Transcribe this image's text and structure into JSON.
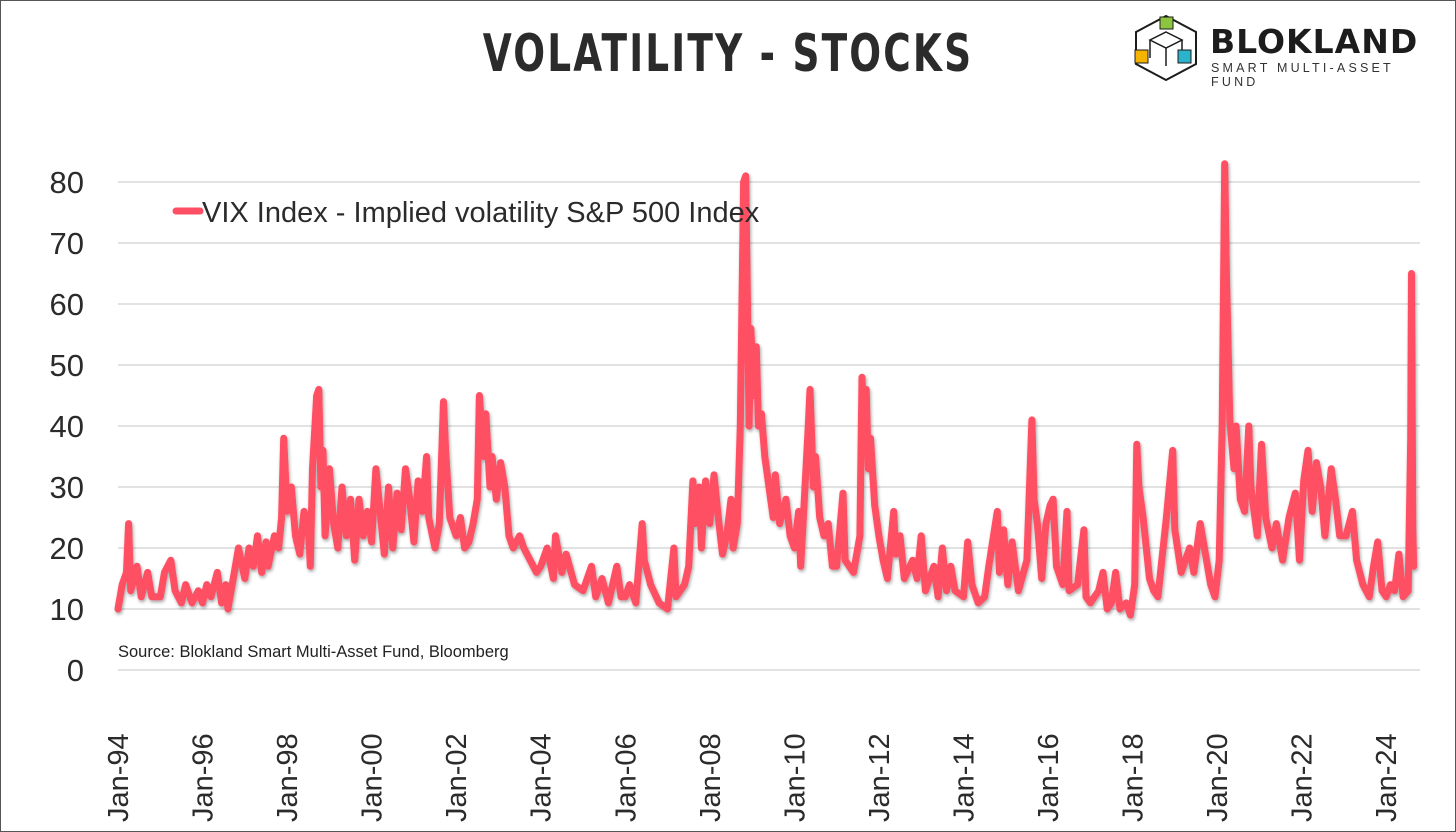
{
  "header": {
    "title": "VOLATILITY - STOCKS"
  },
  "logo": {
    "brand": "BLOKLAND",
    "tagline": "SMART MULTI-ASSET FUND",
    "colors": [
      "#8cc63f",
      "#f4b400",
      "#2bb3cc"
    ]
  },
  "chart_data": {
    "type": "line",
    "title": "VOLATILITY - STOCKS",
    "xlabel": "",
    "ylabel": "",
    "ylim": [
      0,
      80
    ],
    "yticks": [
      0,
      10,
      20,
      30,
      40,
      50,
      60,
      70,
      80
    ],
    "xlim": [
      1994,
      2024.8
    ],
    "xticks": [
      1994,
      1996,
      1998,
      2000,
      2002,
      2004,
      2006,
      2008,
      2010,
      2012,
      2014,
      2016,
      2018,
      2020,
      2022,
      2024
    ],
    "xtick_labels": [
      "Jan-94",
      "Jan-96",
      "Jan-98",
      "Jan-00",
      "Jan-02",
      "Jan-04",
      "Jan-06",
      "Jan-08",
      "Jan-10",
      "Jan-12",
      "Jan-14",
      "Jan-16",
      "Jan-18",
      "Jan-20",
      "Jan-22",
      "Jan-24"
    ],
    "grid": true,
    "legend_position": "top-left",
    "source": "Source: Blokland Smart Multi-Asset Fund, Bloomberg",
    "series": [
      {
        "name": "VIX Index - Implied volatility S&P 500 Index",
        "color": "#ff4f64",
        "points": [
          [
            1994.0,
            10
          ],
          [
            1994.1,
            14
          ],
          [
            1994.2,
            16
          ],
          [
            1994.25,
            24
          ],
          [
            1994.3,
            13
          ],
          [
            1994.45,
            17
          ],
          [
            1994.55,
            12
          ],
          [
            1994.7,
            16
          ],
          [
            1994.8,
            12
          ],
          [
            1995.0,
            12
          ],
          [
            1995.1,
            16
          ],
          [
            1995.25,
            18
          ],
          [
            1995.35,
            13
          ],
          [
            1995.5,
            11
          ],
          [
            1995.6,
            14
          ],
          [
            1995.75,
            11
          ],
          [
            1995.9,
            13
          ],
          [
            1996.0,
            11
          ],
          [
            1996.1,
            14
          ],
          [
            1996.2,
            12
          ],
          [
            1996.35,
            16
          ],
          [
            1996.45,
            11
          ],
          [
            1996.55,
            14
          ],
          [
            1996.6,
            10
          ],
          [
            1996.75,
            16
          ],
          [
            1996.85,
            20
          ],
          [
            1997.0,
            15
          ],
          [
            1997.1,
            20
          ],
          [
            1997.2,
            17
          ],
          [
            1997.3,
            22
          ],
          [
            1997.4,
            16
          ],
          [
            1997.5,
            21
          ],
          [
            1997.55,
            17
          ],
          [
            1997.7,
            22
          ],
          [
            1997.8,
            20
          ],
          [
            1997.87,
            25
          ],
          [
            1997.92,
            38
          ],
          [
            1998.0,
            26
          ],
          [
            1998.1,
            30
          ],
          [
            1998.2,
            22
          ],
          [
            1998.3,
            19
          ],
          [
            1998.4,
            26
          ],
          [
            1998.5,
            24
          ],
          [
            1998.55,
            17
          ],
          [
            1998.6,
            33
          ],
          [
            1998.7,
            45
          ],
          [
            1998.75,
            46
          ],
          [
            1998.8,
            30
          ],
          [
            1998.85,
            36
          ],
          [
            1998.9,
            22
          ],
          [
            1999.0,
            33
          ],
          [
            1999.1,
            24
          ],
          [
            1999.2,
            20
          ],
          [
            1999.3,
            30
          ],
          [
            1999.4,
            22
          ],
          [
            1999.5,
            28
          ],
          [
            1999.6,
            18
          ],
          [
            1999.7,
            28
          ],
          [
            1999.8,
            22
          ],
          [
            1999.9,
            26
          ],
          [
            2000.0,
            21
          ],
          [
            2000.1,
            33
          ],
          [
            2000.2,
            26
          ],
          [
            2000.3,
            19
          ],
          [
            2000.4,
            30
          ],
          [
            2000.5,
            20
          ],
          [
            2000.6,
            29
          ],
          [
            2000.7,
            23
          ],
          [
            2000.8,
            33
          ],
          [
            2000.9,
            28
          ],
          [
            2001.0,
            21
          ],
          [
            2001.1,
            31
          ],
          [
            2001.2,
            26
          ],
          [
            2001.3,
            35
          ],
          [
            2001.35,
            25
          ],
          [
            2001.5,
            20
          ],
          [
            2001.6,
            24
          ],
          [
            2001.7,
            44
          ],
          [
            2001.75,
            36
          ],
          [
            2001.85,
            25
          ],
          [
            2002.0,
            22
          ],
          [
            2002.1,
            25
          ],
          [
            2002.2,
            20
          ],
          [
            2002.3,
            21
          ],
          [
            2002.4,
            24
          ],
          [
            2002.5,
            28
          ],
          [
            2002.55,
            45
          ],
          [
            2002.65,
            35
          ],
          [
            2002.7,
            42
          ],
          [
            2002.8,
            30
          ],
          [
            2002.85,
            35
          ],
          [
            2002.95,
            28
          ],
          [
            2003.05,
            34
          ],
          [
            2003.15,
            30
          ],
          [
            2003.25,
            22
          ],
          [
            2003.35,
            20
          ],
          [
            2003.5,
            22
          ],
          [
            2003.6,
            20
          ],
          [
            2003.75,
            18
          ],
          [
            2003.9,
            16
          ],
          [
            2004.0,
            17
          ],
          [
            2004.15,
            20
          ],
          [
            2004.3,
            15
          ],
          [
            2004.35,
            22
          ],
          [
            2004.5,
            16
          ],
          [
            2004.6,
            19
          ],
          [
            2004.8,
            14
          ],
          [
            2005.0,
            13
          ],
          [
            2005.2,
            17
          ],
          [
            2005.3,
            12
          ],
          [
            2005.45,
            15
          ],
          [
            2005.6,
            11
          ],
          [
            2005.8,
            17
          ],
          [
            2005.9,
            12
          ],
          [
            2006.0,
            12
          ],
          [
            2006.1,
            14
          ],
          [
            2006.25,
            11
          ],
          [
            2006.4,
            24
          ],
          [
            2006.45,
            18
          ],
          [
            2006.6,
            14
          ],
          [
            2006.8,
            11
          ],
          [
            2007.0,
            10
          ],
          [
            2007.15,
            20
          ],
          [
            2007.2,
            12
          ],
          [
            2007.4,
            14
          ],
          [
            2007.5,
            17
          ],
          [
            2007.6,
            31
          ],
          [
            2007.65,
            24
          ],
          [
            2007.75,
            30
          ],
          [
            2007.8,
            20
          ],
          [
            2007.9,
            31
          ],
          [
            2008.0,
            24
          ],
          [
            2008.1,
            32
          ],
          [
            2008.2,
            25
          ],
          [
            2008.3,
            19
          ],
          [
            2008.4,
            22
          ],
          [
            2008.5,
            28
          ],
          [
            2008.55,
            20
          ],
          [
            2008.65,
            24
          ],
          [
            2008.72,
            40
          ],
          [
            2008.78,
            70
          ],
          [
            2008.8,
            80
          ],
          [
            2008.85,
            81
          ],
          [
            2008.9,
            55
          ],
          [
            2008.93,
            40
          ],
          [
            2008.97,
            56
          ],
          [
            2009.05,
            45
          ],
          [
            2009.1,
            53
          ],
          [
            2009.15,
            40
          ],
          [
            2009.22,
            42
          ],
          [
            2009.3,
            35
          ],
          [
            2009.4,
            30
          ],
          [
            2009.5,
            25
          ],
          [
            2009.55,
            32
          ],
          [
            2009.65,
            24
          ],
          [
            2009.8,
            28
          ],
          [
            2009.9,
            22
          ],
          [
            2010.0,
            20
          ],
          [
            2010.1,
            26
          ],
          [
            2010.15,
            17
          ],
          [
            2010.33,
            40
          ],
          [
            2010.37,
            46
          ],
          [
            2010.45,
            30
          ],
          [
            2010.5,
            35
          ],
          [
            2010.6,
            25
          ],
          [
            2010.7,
            22
          ],
          [
            2010.8,
            24
          ],
          [
            2010.9,
            17
          ],
          [
            2011.0,
            17
          ],
          [
            2011.15,
            29
          ],
          [
            2011.2,
            18
          ],
          [
            2011.4,
            16
          ],
          [
            2011.55,
            22
          ],
          [
            2011.6,
            48
          ],
          [
            2011.65,
            40
          ],
          [
            2011.7,
            46
          ],
          [
            2011.75,
            33
          ],
          [
            2011.8,
            38
          ],
          [
            2011.9,
            27
          ],
          [
            2012.0,
            22
          ],
          [
            2012.1,
            18
          ],
          [
            2012.2,
            15
          ],
          [
            2012.35,
            26
          ],
          [
            2012.4,
            19
          ],
          [
            2012.5,
            22
          ],
          [
            2012.6,
            15
          ],
          [
            2012.8,
            18
          ],
          [
            2012.9,
            15
          ],
          [
            2013.0,
            22
          ],
          [
            2013.1,
            13
          ],
          [
            2013.3,
            17
          ],
          [
            2013.4,
            12
          ],
          [
            2013.5,
            20
          ],
          [
            2013.6,
            13
          ],
          [
            2013.7,
            17
          ],
          [
            2013.8,
            13
          ],
          [
            2014.0,
            12
          ],
          [
            2014.1,
            21
          ],
          [
            2014.2,
            14
          ],
          [
            2014.35,
            11
          ],
          [
            2014.5,
            12
          ],
          [
            2014.6,
            17
          ],
          [
            2014.8,
            26
          ],
          [
            2014.85,
            16
          ],
          [
            2014.95,
            23
          ],
          [
            2015.05,
            14
          ],
          [
            2015.15,
            21
          ],
          [
            2015.3,
            13
          ],
          [
            2015.5,
            18
          ],
          [
            2015.62,
            41
          ],
          [
            2015.67,
            28
          ],
          [
            2015.75,
            24
          ],
          [
            2015.85,
            15
          ],
          [
            2015.95,
            24
          ],
          [
            2016.05,
            27
          ],
          [
            2016.12,
            28
          ],
          [
            2016.2,
            17
          ],
          [
            2016.35,
            14
          ],
          [
            2016.45,
            26
          ],
          [
            2016.5,
            13
          ],
          [
            2016.7,
            14
          ],
          [
            2016.85,
            23
          ],
          [
            2016.9,
            12
          ],
          [
            2017.0,
            11
          ],
          [
            2017.2,
            13
          ],
          [
            2017.3,
            16
          ],
          [
            2017.4,
            10
          ],
          [
            2017.5,
            11
          ],
          [
            2017.6,
            16
          ],
          [
            2017.7,
            10
          ],
          [
            2017.85,
            11
          ],
          [
            2017.95,
            9
          ],
          [
            2018.05,
            14
          ],
          [
            2018.1,
            37
          ],
          [
            2018.15,
            30
          ],
          [
            2018.25,
            25
          ],
          [
            2018.4,
            15
          ],
          [
            2018.5,
            13
          ],
          [
            2018.6,
            12
          ],
          [
            2018.8,
            25
          ],
          [
            2018.95,
            36
          ],
          [
            2019.0,
            23
          ],
          [
            2019.15,
            16
          ],
          [
            2019.35,
            20
          ],
          [
            2019.45,
            16
          ],
          [
            2019.6,
            24
          ],
          [
            2019.75,
            18
          ],
          [
            2019.85,
            14
          ],
          [
            2019.95,
            12
          ],
          [
            2020.05,
            18
          ],
          [
            2020.12,
            40
          ],
          [
            2020.18,
            83
          ],
          [
            2020.22,
            65
          ],
          [
            2020.3,
            41
          ],
          [
            2020.4,
            33
          ],
          [
            2020.45,
            40
          ],
          [
            2020.55,
            28
          ],
          [
            2020.65,
            26
          ],
          [
            2020.75,
            40
          ],
          [
            2020.8,
            30
          ],
          [
            2020.95,
            22
          ],
          [
            2021.05,
            37
          ],
          [
            2021.15,
            25
          ],
          [
            2021.3,
            20
          ],
          [
            2021.4,
            24
          ],
          [
            2021.55,
            18
          ],
          [
            2021.7,
            25
          ],
          [
            2021.85,
            29
          ],
          [
            2021.95,
            18
          ],
          [
            2022.05,
            31
          ],
          [
            2022.15,
            36
          ],
          [
            2022.25,
            26
          ],
          [
            2022.35,
            34
          ],
          [
            2022.45,
            30
          ],
          [
            2022.55,
            22
          ],
          [
            2022.7,
            33
          ],
          [
            2022.8,
            28
          ],
          [
            2022.9,
            22
          ],
          [
            2023.05,
            22
          ],
          [
            2023.2,
            26
          ],
          [
            2023.3,
            18
          ],
          [
            2023.45,
            14
          ],
          [
            2023.6,
            12
          ],
          [
            2023.7,
            17
          ],
          [
            2023.8,
            21
          ],
          [
            2023.9,
            13
          ],
          [
            2024.0,
            12
          ],
          [
            2024.1,
            14
          ],
          [
            2024.2,
            13
          ],
          [
            2024.3,
            19
          ],
          [
            2024.4,
            12
          ],
          [
            2024.52,
            13
          ],
          [
            2024.58,
            38
          ],
          [
            2024.6,
            65
          ],
          [
            2024.63,
            23
          ],
          [
            2024.65,
            17
          ]
        ]
      }
    ]
  }
}
